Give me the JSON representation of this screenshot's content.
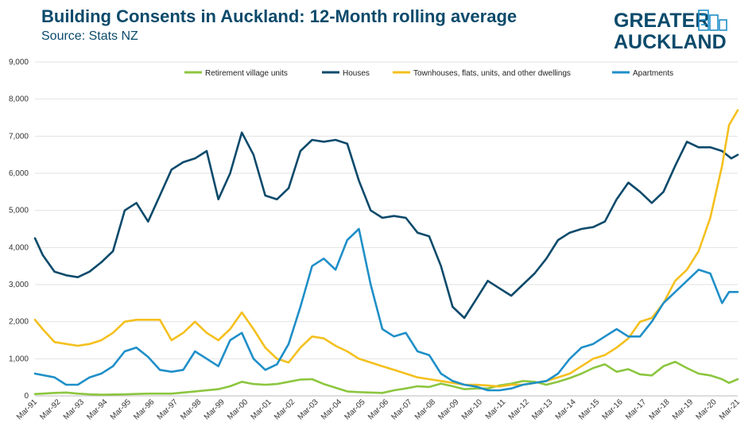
{
  "header": {
    "title": "Building Consents in Auckland: 12-Month rolling average",
    "subtitle": "Source: Stats NZ"
  },
  "logo": {
    "line1": "GREATER",
    "line2": "AUCKLAND",
    "color": "#0b4a6b",
    "icon": "city-skyline-icon"
  },
  "chart_data": {
    "type": "line",
    "title": "Building Consents in Auckland: 12-Month rolling average",
    "subtitle": "Source: Stats NZ",
    "xlabel": "",
    "ylabel": "",
    "ylim": [
      0,
      9000
    ],
    "yticks": [
      0,
      1000,
      2000,
      3000,
      4000,
      5000,
      6000,
      7000,
      8000,
      9000
    ],
    "ytick_labels": [
      "0",
      "1,000",
      "2,000",
      "3,000",
      "4,000",
      "5,000",
      "6,000",
      "7,000",
      "8,000",
      "9,000"
    ],
    "xlim": [
      1991.17,
      2021.17
    ],
    "xtick_labels": [
      "Mar-91",
      "Mar-92",
      "Mar-93",
      "Mar-94",
      "Mar-95",
      "Mar-96",
      "Mar-97",
      "Mar-98",
      "Mar-99",
      "Mar-00",
      "Mar-01",
      "Mar-02",
      "Mar-03",
      "Mar-04",
      "Mar-05",
      "Mar-06",
      "Mar-07",
      "Mar-08",
      "Mar-09",
      "Mar-10",
      "Mar-11",
      "Mar-12",
      "Mar-13",
      "Mar-14",
      "Mar-15",
      "Mar-16",
      "Mar-17",
      "Mar-18",
      "Mar-19",
      "Mar-20",
      "Mar-21"
    ],
    "grid": true,
    "legend_position": "top",
    "series": [
      {
        "name": "Retirement village units",
        "color": "#8cc63f",
        "points": [
          [
            1991.17,
            50
          ],
          [
            1991.5,
            60
          ],
          [
            1992.0,
            80
          ],
          [
            1992.5,
            90
          ],
          [
            1993.0,
            60
          ],
          [
            1993.5,
            40
          ],
          [
            1994.0,
            30
          ],
          [
            1995.0,
            40
          ],
          [
            1996.0,
            60
          ],
          [
            1997.0,
            60
          ],
          [
            1998.0,
            120
          ],
          [
            1999.0,
            180
          ],
          [
            1999.5,
            260
          ],
          [
            2000.0,
            380
          ],
          [
            2000.5,
            320
          ],
          [
            2001.0,
            300
          ],
          [
            2001.5,
            320
          ],
          [
            2002.0,
            380
          ],
          [
            2002.5,
            440
          ],
          [
            2003.0,
            450
          ],
          [
            2003.5,
            320
          ],
          [
            2004.0,
            220
          ],
          [
            2004.5,
            120
          ],
          [
            2005.0,
            100
          ],
          [
            2005.5,
            90
          ],
          [
            2006.0,
            80
          ],
          [
            2006.5,
            150
          ],
          [
            2007.0,
            200
          ],
          [
            2007.5,
            260
          ],
          [
            2008.0,
            240
          ],
          [
            2008.5,
            330
          ],
          [
            2009.0,
            260
          ],
          [
            2009.5,
            180
          ],
          [
            2010.0,
            200
          ],
          [
            2010.5,
            200
          ],
          [
            2011.0,
            280
          ],
          [
            2011.5,
            330
          ],
          [
            2012.0,
            400
          ],
          [
            2012.5,
            380
          ],
          [
            2013.0,
            300
          ],
          [
            2013.5,
            380
          ],
          [
            2014.0,
            480
          ],
          [
            2014.5,
            600
          ],
          [
            2015.0,
            750
          ],
          [
            2015.5,
            850
          ],
          [
            2016.0,
            650
          ],
          [
            2016.5,
            720
          ],
          [
            2017.0,
            580
          ],
          [
            2017.5,
            550
          ],
          [
            2018.0,
            800
          ],
          [
            2018.5,
            920
          ],
          [
            2019.0,
            750
          ],
          [
            2019.5,
            600
          ],
          [
            2020.0,
            550
          ],
          [
            2020.5,
            450
          ],
          [
            2020.8,
            350
          ],
          [
            2021.17,
            450
          ]
        ]
      },
      {
        "name": "Houses",
        "color": "#0b4a6b",
        "points": [
          [
            1991.17,
            4250
          ],
          [
            1991.5,
            3800
          ],
          [
            1992.0,
            3350
          ],
          [
            1992.5,
            3250
          ],
          [
            1993.0,
            3200
          ],
          [
            1993.5,
            3350
          ],
          [
            1994.0,
            3600
          ],
          [
            1994.5,
            3900
          ],
          [
            1995.0,
            5000
          ],
          [
            1995.5,
            5200
          ],
          [
            1996.0,
            4700
          ],
          [
            1996.5,
            5400
          ],
          [
            1997.0,
            6100
          ],
          [
            1997.5,
            6300
          ],
          [
            1998.0,
            6400
          ],
          [
            1998.5,
            6600
          ],
          [
            1999.0,
            5300
          ],
          [
            1999.5,
            6000
          ],
          [
            2000.0,
            7100
          ],
          [
            2000.5,
            6500
          ],
          [
            2001.0,
            5400
          ],
          [
            2001.5,
            5300
          ],
          [
            2002.0,
            5600
          ],
          [
            2002.5,
            6600
          ],
          [
            2003.0,
            6900
          ],
          [
            2003.5,
            6850
          ],
          [
            2004.0,
            6900
          ],
          [
            2004.5,
            6800
          ],
          [
            2005.0,
            5800
          ],
          [
            2005.5,
            5000
          ],
          [
            2006.0,
            4800
          ],
          [
            2006.5,
            4850
          ],
          [
            2007.0,
            4800
          ],
          [
            2007.5,
            4400
          ],
          [
            2008.0,
            4300
          ],
          [
            2008.5,
            3500
          ],
          [
            2009.0,
            2400
          ],
          [
            2009.5,
            2100
          ],
          [
            2010.0,
            2600
          ],
          [
            2010.5,
            3100
          ],
          [
            2011.0,
            2900
          ],
          [
            2011.5,
            2700
          ],
          [
            2012.0,
            3000
          ],
          [
            2012.5,
            3300
          ],
          [
            2013.0,
            3700
          ],
          [
            2013.5,
            4200
          ],
          [
            2014.0,
            4400
          ],
          [
            2014.5,
            4500
          ],
          [
            2015.0,
            4550
          ],
          [
            2015.5,
            4700
          ],
          [
            2016.0,
            5300
          ],
          [
            2016.5,
            5750
          ],
          [
            2017.0,
            5500
          ],
          [
            2017.5,
            5200
          ],
          [
            2018.0,
            5500
          ],
          [
            2018.5,
            6200
          ],
          [
            2019.0,
            6850
          ],
          [
            2019.5,
            6700
          ],
          [
            2020.0,
            6700
          ],
          [
            2020.5,
            6600
          ],
          [
            2020.9,
            6400
          ],
          [
            2021.17,
            6500
          ]
        ]
      },
      {
        "name": "Townhouses, flats, units, and other dwellings",
        "color": "#f4c01e",
        "points": [
          [
            1991.17,
            2050
          ],
          [
            1991.5,
            1800
          ],
          [
            1992.0,
            1450
          ],
          [
            1992.5,
            1400
          ],
          [
            1993.0,
            1350
          ],
          [
            1993.5,
            1400
          ],
          [
            1994.0,
            1500
          ],
          [
            1994.5,
            1700
          ],
          [
            1995.0,
            2000
          ],
          [
            1995.5,
            2050
          ],
          [
            1996.0,
            2050
          ],
          [
            1996.5,
            2050
          ],
          [
            1997.0,
            1500
          ],
          [
            1997.5,
            1700
          ],
          [
            1998.0,
            2000
          ],
          [
            1998.5,
            1700
          ],
          [
            1999.0,
            1500
          ],
          [
            1999.5,
            1800
          ],
          [
            2000.0,
            2250
          ],
          [
            2000.5,
            1800
          ],
          [
            2001.0,
            1300
          ],
          [
            2001.5,
            1000
          ],
          [
            2002.0,
            900
          ],
          [
            2002.5,
            1300
          ],
          [
            2003.0,
            1600
          ],
          [
            2003.5,
            1550
          ],
          [
            2004.0,
            1350
          ],
          [
            2004.5,
            1200
          ],
          [
            2005.0,
            1000
          ],
          [
            2005.5,
            900
          ],
          [
            2006.0,
            800
          ],
          [
            2006.5,
            700
          ],
          [
            2007.0,
            600
          ],
          [
            2007.5,
            500
          ],
          [
            2008.0,
            450
          ],
          [
            2008.5,
            400
          ],
          [
            2009.0,
            350
          ],
          [
            2009.5,
            300
          ],
          [
            2010.0,
            300
          ],
          [
            2010.5,
            280
          ],
          [
            2011.0,
            250
          ],
          [
            2011.5,
            300
          ],
          [
            2012.0,
            300
          ],
          [
            2012.5,
            350
          ],
          [
            2013.0,
            400
          ],
          [
            2013.5,
            500
          ],
          [
            2014.0,
            600
          ],
          [
            2014.5,
            800
          ],
          [
            2015.0,
            1000
          ],
          [
            2015.5,
            1100
          ],
          [
            2016.0,
            1300
          ],
          [
            2016.5,
            1550
          ],
          [
            2017.0,
            2000
          ],
          [
            2017.5,
            2100
          ],
          [
            2018.0,
            2500
          ],
          [
            2018.5,
            3100
          ],
          [
            2019.0,
            3400
          ],
          [
            2019.5,
            3900
          ],
          [
            2020.0,
            4800
          ],
          [
            2020.5,
            6200
          ],
          [
            2020.8,
            7300
          ],
          [
            2021.17,
            7700
          ]
        ]
      },
      {
        "name": "Apartments",
        "color": "#1f8fc8",
        "points": [
          [
            1991.17,
            600
          ],
          [
            1991.5,
            560
          ],
          [
            1992.0,
            500
          ],
          [
            1992.5,
            300
          ],
          [
            1993.0,
            300
          ],
          [
            1993.5,
            500
          ],
          [
            1994.0,
            600
          ],
          [
            1994.5,
            800
          ],
          [
            1995.0,
            1200
          ],
          [
            1995.5,
            1300
          ],
          [
            1996.0,
            1050
          ],
          [
            1996.5,
            700
          ],
          [
            1997.0,
            650
          ],
          [
            1997.5,
            700
          ],
          [
            1998.0,
            1200
          ],
          [
            1998.5,
            1000
          ],
          [
            1999.0,
            800
          ],
          [
            1999.5,
            1500
          ],
          [
            2000.0,
            1700
          ],
          [
            2000.5,
            1000
          ],
          [
            2001.0,
            700
          ],
          [
            2001.5,
            850
          ],
          [
            2002.0,
            1400
          ],
          [
            2002.5,
            2400
          ],
          [
            2003.0,
            3500
          ],
          [
            2003.5,
            3700
          ],
          [
            2004.0,
            3400
          ],
          [
            2004.5,
            4200
          ],
          [
            2005.0,
            4500
          ],
          [
            2005.5,
            3000
          ],
          [
            2006.0,
            1800
          ],
          [
            2006.5,
            1600
          ],
          [
            2007.0,
            1700
          ],
          [
            2007.5,
            1200
          ],
          [
            2008.0,
            1100
          ],
          [
            2008.5,
            600
          ],
          [
            2009.0,
            400
          ],
          [
            2009.5,
            300
          ],
          [
            2010.0,
            250
          ],
          [
            2010.5,
            150
          ],
          [
            2011.0,
            150
          ],
          [
            2011.5,
            200
          ],
          [
            2012.0,
            300
          ],
          [
            2012.5,
            350
          ],
          [
            2013.0,
            400
          ],
          [
            2013.5,
            600
          ],
          [
            2014.0,
            1000
          ],
          [
            2014.5,
            1300
          ],
          [
            2015.0,
            1400
          ],
          [
            2015.5,
            1600
          ],
          [
            2016.0,
            1800
          ],
          [
            2016.5,
            1600
          ],
          [
            2017.0,
            1600
          ],
          [
            2017.5,
            2000
          ],
          [
            2018.0,
            2500
          ],
          [
            2018.5,
            2800
          ],
          [
            2019.0,
            3100
          ],
          [
            2019.5,
            3400
          ],
          [
            2020.0,
            3300
          ],
          [
            2020.5,
            2500
          ],
          [
            2020.8,
            2800
          ],
          [
            2021.17,
            2800
          ]
        ]
      }
    ]
  }
}
